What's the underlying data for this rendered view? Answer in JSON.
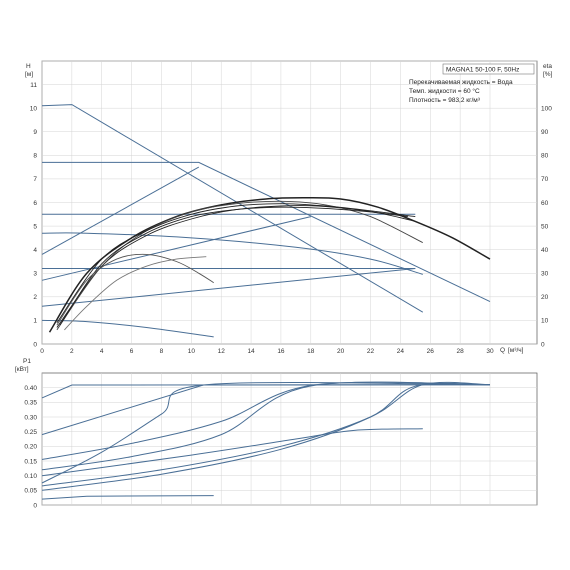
{
  "chart_data": [
    {
      "type": "line",
      "title": "MAGNA1 50-100 F, 50Hz",
      "annotations": [
        "Перекачиваемая жидкость = Вода",
        "Темп. жидкости = 60 °C",
        "Плотность = 983,2 кг/м³"
      ],
      "ylabel": "H",
      "yunit": "[м]",
      "xlabel": "Q",
      "xunit": "[м³/ч]",
      "y2label": "eta",
      "y2unit": "[%]",
      "xlim": [
        0,
        30
      ],
      "ylim": [
        0,
        12
      ],
      "y2lim": [
        0,
        120
      ],
      "xticks": [
        "0",
        "2",
        "4",
        "6",
        "8",
        "10",
        "12",
        "14",
        "16",
        "18",
        "20",
        "22",
        "24",
        "26",
        "28",
        "30"
      ],
      "yticks": [
        "0",
        "1",
        "2",
        "3",
        "4",
        "5",
        "6",
        "7",
        "8",
        "9",
        "10",
        "11"
      ],
      "y2ticks": [
        "0",
        "10",
        "20",
        "30",
        "40",
        "50",
        "60",
        "70",
        "80",
        "90",
        "100"
      ],
      "grid": true,
      "series": [
        {
          "group": "H",
          "color": "#4a6f96",
          "x": [
            0,
            2,
            25.5
          ],
          "y": [
            10.1,
            10.15,
            1.35
          ]
        },
        {
          "group": "H",
          "color": "#4a6f96",
          "x": [
            0,
            10.5,
            30
          ],
          "y": [
            7.7,
            7.7,
            1.8
          ]
        },
        {
          "group": "H",
          "color": "#4a6f96",
          "x": [
            0,
            13,
            18,
            25
          ],
          "y": [
            5.5,
            5.5,
            5.5,
            5.5
          ]
        },
        {
          "group": "H",
          "color": "#4a6f96",
          "x": [
            0,
            3,
            10,
            17,
            22,
            25.5
          ],
          "y": [
            4.7,
            4.7,
            4.5,
            4.1,
            3.6,
            2.95
          ]
        },
        {
          "group": "H",
          "color": "#4a6f96",
          "x": [
            0,
            25
          ],
          "y": [
            3.2,
            3.2
          ]
        },
        {
          "group": "H",
          "color": "#4a6f96",
          "x": [
            0,
            25
          ],
          "y": [
            1.6,
            3.2
          ]
        },
        {
          "group": "H",
          "color": "#4a6f96",
          "x": [
            0,
            3,
            7,
            11.5
          ],
          "y": [
            1.0,
            0.95,
            0.7,
            0.3
          ]
        },
        {
          "group": "H",
          "color": "#4a6f96",
          "x": [
            0,
            10.5
          ],
          "y": [
            3.8,
            7.5
          ]
        },
        {
          "group": "H",
          "color": "#4a6f96",
          "x": [
            0,
            18
          ],
          "y": [
            2.7,
            5.4
          ]
        },
        {
          "group": "eta",
          "color": "#222222",
          "x": [
            0.5,
            3,
            6,
            9,
            12,
            15,
            17.5,
            20,
            22.5,
            25,
            27.5,
            30
          ],
          "y": [
            5,
            30,
            45,
            54,
            59,
            61.5,
            62,
            61.5,
            58,
            52,
            45,
            36
          ]
        },
        {
          "group": "eta",
          "color": "#222222",
          "x": [
            1,
            4,
            7,
            10,
            13,
            16,
            18.5,
            21,
            23,
            25
          ],
          "y": [
            7,
            33,
            46,
            53,
            57,
            58.5,
            58.5,
            57,
            55,
            52
          ]
        },
        {
          "group": "eta",
          "color": "#444444",
          "x": [
            1,
            4,
            7,
            10,
            13,
            16,
            19,
            22,
            25.5
          ],
          "y": [
            6,
            33,
            48,
            56,
            59.5,
            60.5,
            59,
            54,
            43
          ]
        },
        {
          "group": "eta",
          "color": "#222222",
          "x": [
            1.2,
            4,
            7,
            10,
            13,
            16,
            19,
            22,
            24.5
          ],
          "y": [
            8,
            34,
            47,
            54,
            57,
            58,
            57.5,
            56,
            54
          ]
        },
        {
          "group": "eta",
          "color": "#222222",
          "x": [
            1,
            4,
            7,
            10,
            13,
            16,
            19,
            22,
            25
          ],
          "y": [
            9,
            36,
            48,
            55,
            58.5,
            59.5,
            58.5,
            56.5,
            54
          ]
        },
        {
          "group": "eta",
          "color": "#555555",
          "x": [
            1,
            3,
            5,
            7,
            9,
            10.5,
            11.5
          ],
          "y": [
            8,
            27,
            36,
            38,
            35,
            30,
            26
          ]
        },
        {
          "group": "eta",
          "color": "#777777",
          "x": [
            1.5,
            3,
            5,
            7,
            9,
            11
          ],
          "y": [
            6,
            16,
            27,
            33,
            36,
            37
          ]
        }
      ]
    },
    {
      "type": "line",
      "ylabel": "P1",
      "yunit": "[кВт]",
      "xlim": [
        0,
        30
      ],
      "ylim": [
        0,
        0.45
      ],
      "yticks": [
        "0",
        "0.05",
        "0.10",
        "0.15",
        "0.20",
        "0.25",
        "0.30",
        "0.35",
        "0.40"
      ],
      "grid": true,
      "series": [
        {
          "color": "#4a6f96",
          "x": [
            0,
            2,
            30
          ],
          "y": [
            0.365,
            0.409,
            0.41
          ]
        },
        {
          "color": "#4a6f96",
          "x": [
            0,
            10.8,
            30
          ],
          "y": [
            0.24,
            0.409,
            0.41
          ]
        },
        {
          "color": "#4a6f96",
          "x": [
            0,
            6,
            12,
            18.2,
            30
          ],
          "y": [
            0.155,
            0.21,
            0.285,
            0.409,
            0.41
          ]
        },
        {
          "color": "#4a6f96",
          "x": [
            0,
            6,
            12,
            17.9,
            30
          ],
          "y": [
            0.12,
            0.165,
            0.24,
            0.405,
            0.41
          ]
        },
        {
          "color": "#4a6f96",
          "x": [
            0,
            4,
            8,
            11,
            30
          ],
          "y": [
            0.075,
            0.18,
            0.31,
            0.41,
            0.41
          ]
        },
        {
          "color": "#4a6f96",
          "x": [
            0,
            10,
            17,
            21,
            25.5
          ],
          "y": [
            0.1,
            0.17,
            0.225,
            0.255,
            0.26
          ]
        },
        {
          "color": "#4a6f96",
          "x": [
            0,
            8,
            16,
            22,
            25.5,
            30
          ],
          "y": [
            0.065,
            0.12,
            0.2,
            0.3,
            0.41,
            0.41
          ]
        },
        {
          "color": "#4a6f96",
          "x": [
            0,
            8,
            16,
            22,
            25,
            30
          ],
          "y": [
            0.05,
            0.105,
            0.19,
            0.3,
            0.405,
            0.41
          ]
        },
        {
          "color": "#4a6f96",
          "x": [
            0,
            3,
            11.5
          ],
          "y": [
            0.02,
            0.03,
            0.032
          ]
        }
      ]
    }
  ]
}
